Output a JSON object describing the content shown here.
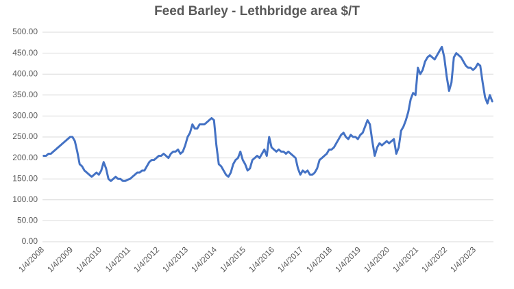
{
  "chart_data": {
    "type": "line",
    "title": "Feed Barley - Lethbridge area $/T",
    "categories": [
      "1/4/2008",
      null,
      null,
      null,
      null,
      null,
      null,
      null,
      null,
      null,
      null,
      null,
      "1/4/2009",
      null,
      null,
      null,
      null,
      null,
      null,
      null,
      null,
      null,
      null,
      null,
      "1/4/2010",
      null,
      null,
      null,
      null,
      null,
      null,
      null,
      null,
      null,
      null,
      null,
      "1/4/2011",
      null,
      null,
      null,
      null,
      null,
      null,
      null,
      null,
      null,
      null,
      null,
      "1/4/2012",
      null,
      null,
      null,
      null,
      null,
      null,
      null,
      null,
      null,
      null,
      null,
      "1/4/2013",
      null,
      null,
      null,
      null,
      null,
      null,
      null,
      null,
      null,
      null,
      null,
      "1/4/2014",
      null,
      null,
      null,
      null,
      null,
      null,
      null,
      null,
      null,
      null,
      null,
      "1/4/2015",
      null,
      null,
      null,
      null,
      null,
      null,
      null,
      null,
      null,
      null,
      null,
      "1/4/2016",
      null,
      null,
      null,
      null,
      null,
      null,
      null,
      null,
      null,
      null,
      null,
      "1/4/2017",
      null,
      null,
      null,
      null,
      null,
      null,
      null,
      null,
      null,
      null,
      null,
      "1/4/2018",
      null,
      null,
      null,
      null,
      null,
      null,
      null,
      null,
      null,
      null,
      null,
      "1/4/2019",
      null,
      null,
      null,
      null,
      null,
      null,
      null,
      null,
      null,
      null,
      null,
      "1/4/2020",
      null,
      null,
      null,
      null,
      null,
      null,
      null,
      null,
      null,
      null,
      null,
      "1/4/2021",
      null,
      null,
      null,
      null,
      null,
      null,
      null,
      null,
      null,
      null,
      null,
      "1/4/2022",
      null,
      null,
      null,
      null,
      null,
      null,
      null,
      null,
      null,
      null,
      null,
      "1/4/2023",
      null,
      null,
      null,
      null,
      null,
      null,
      null
    ],
    "series": [
      {
        "color": "#4472c4",
        "values": [
          205,
          205,
          210,
          210,
          215,
          220,
          225,
          230,
          235,
          240,
          245,
          250,
          250,
          240,
          215,
          185,
          180,
          170,
          165,
          160,
          155,
          160,
          165,
          160,
          170,
          190,
          175,
          150,
          145,
          150,
          155,
          150,
          150,
          145,
          145,
          148,
          150,
          155,
          160,
          165,
          165,
          170,
          170,
          180,
          190,
          195,
          195,
          200,
          205,
          205,
          210,
          205,
          200,
          210,
          215,
          215,
          220,
          210,
          215,
          230,
          250,
          260,
          280,
          270,
          270,
          280,
          280,
          280,
          285,
          290,
          295,
          290,
          230,
          185,
          180,
          170,
          160,
          155,
          165,
          185,
          195,
          200,
          215,
          195,
          185,
          170,
          175,
          195,
          200,
          205,
          200,
          210,
          220,
          205,
          250,
          225,
          220,
          215,
          220,
          215,
          215,
          210,
          215,
          210,
          205,
          200,
          175,
          160,
          170,
          165,
          170,
          160,
          160,
          165,
          175,
          195,
          200,
          205,
          210,
          220,
          220,
          225,
          235,
          245,
          255,
          260,
          250,
          245,
          255,
          250,
          250,
          245,
          255,
          260,
          275,
          290,
          280,
          240,
          205,
          225,
          235,
          230,
          235,
          240,
          235,
          240,
          245,
          210,
          225,
          265,
          275,
          290,
          310,
          340,
          355,
          350,
          415,
          400,
          410,
          430,
          440,
          445,
          440,
          435,
          445,
          455,
          465,
          440,
          395,
          360,
          380,
          440,
          450,
          445,
          440,
          430,
          420,
          415,
          415,
          410,
          415,
          425,
          420,
          380,
          345,
          330,
          350,
          335
        ]
      }
    ],
    "ylim": [
      0,
      500
    ],
    "yticks": [
      {
        "value": 0,
        "label": "0.00"
      },
      {
        "value": 50,
        "label": "50.00"
      },
      {
        "value": 100,
        "label": "100.00"
      },
      {
        "value": 150,
        "label": "150.00"
      },
      {
        "value": 200,
        "label": "200.00"
      },
      {
        "value": 250,
        "label": "250.00"
      },
      {
        "value": 300,
        "label": "300.00"
      },
      {
        "value": 350,
        "label": "350.00"
      },
      {
        "value": 400,
        "label": "400.00"
      },
      {
        "value": 450,
        "label": "450.00"
      },
      {
        "value": 500,
        "label": "500.00"
      }
    ],
    "grid": true
  }
}
